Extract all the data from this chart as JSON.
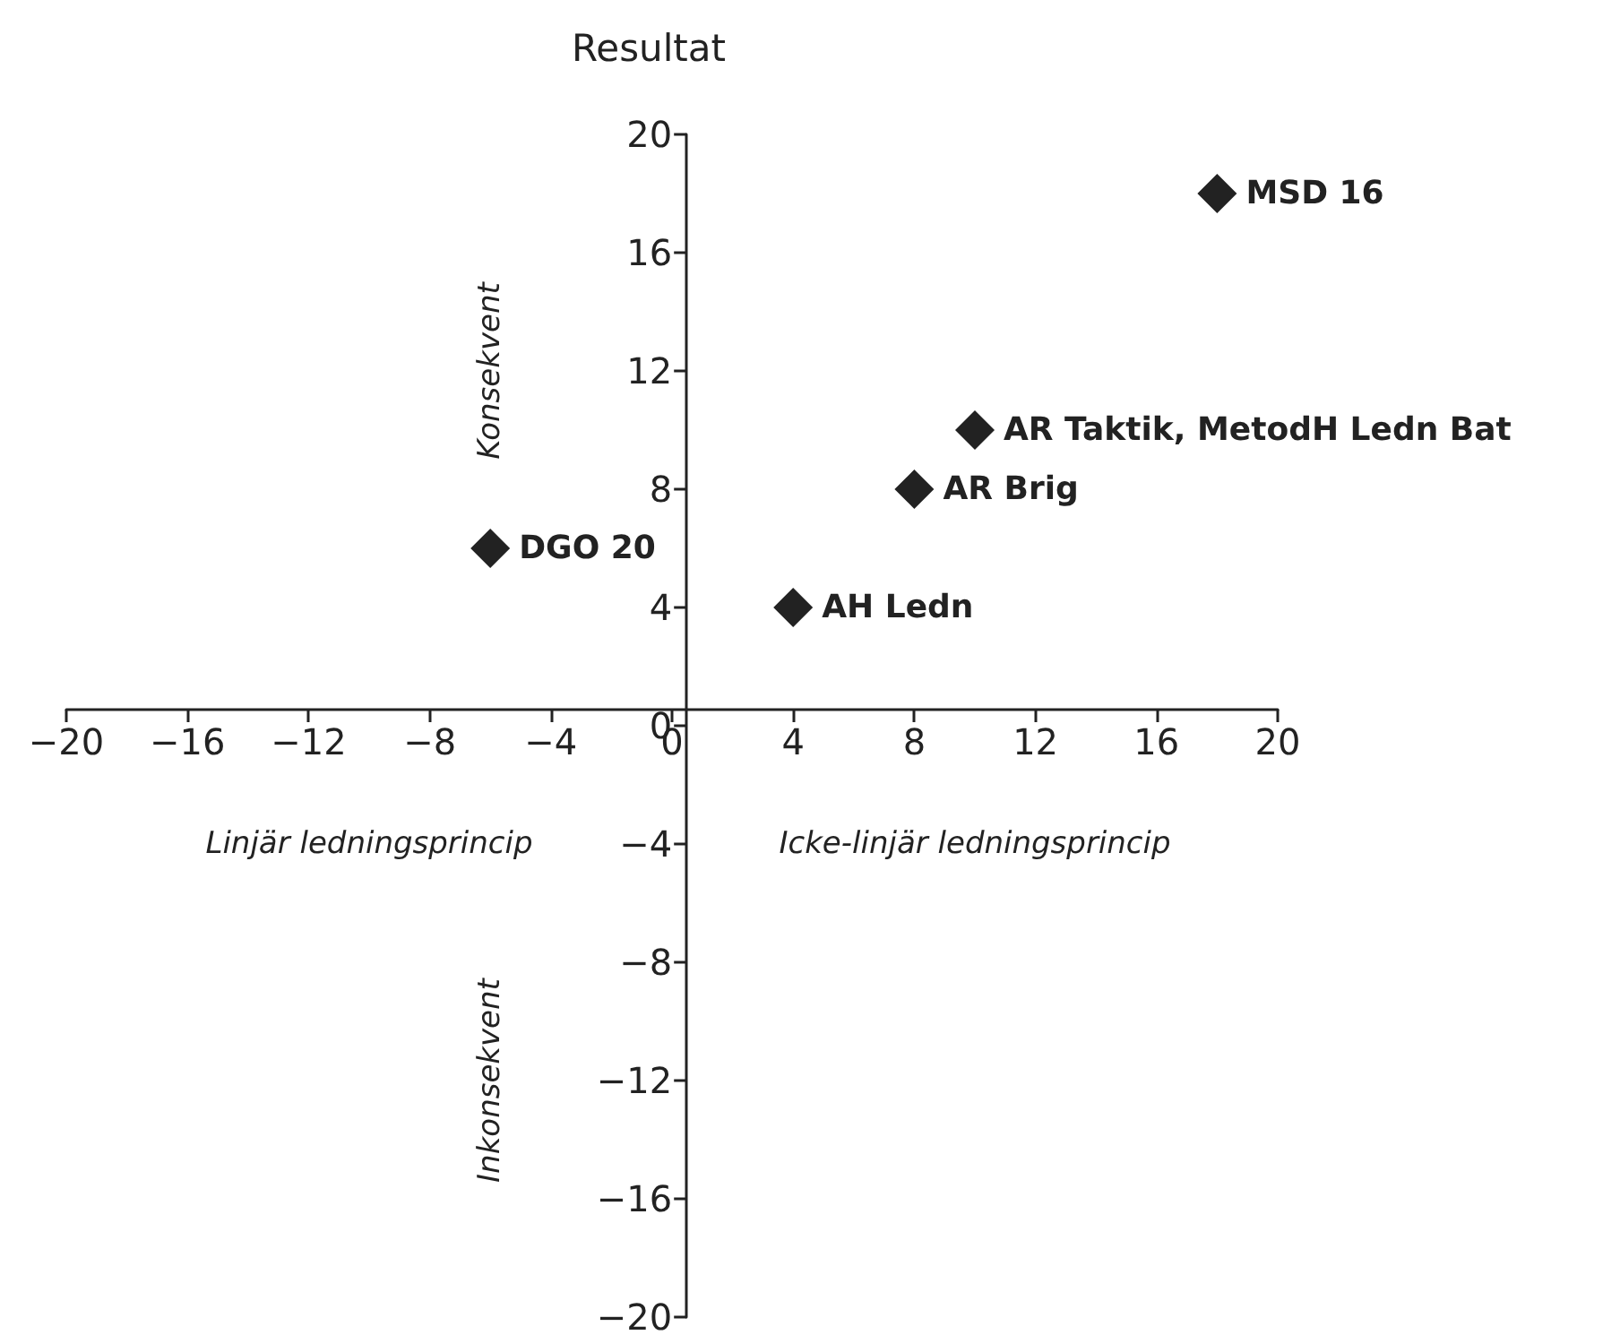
{
  "chart_data": {
    "type": "scatter",
    "title": "Resultat",
    "series": [
      {
        "color": "#222222",
        "x": [
          18,
          10,
          8,
          -6,
          4
        ],
        "values": [
          18,
          10,
          8,
          6,
          4
        ]
      }
    ],
    "xlim": [
      -20,
      20
    ],
    "xticks": [
      -20,
      -16,
      -12,
      -8,
      -4,
      0,
      4,
      8,
      12,
      16,
      20
    ],
    "ylim": [
      -20,
      20
    ],
    "yticks": [
      -20,
      -16,
      -12,
      -8,
      -4,
      0,
      4,
      8,
      12,
      16,
      20
    ],
    "marker": "diamond",
    "grid": false,
    "annotations": [
      {
        "text": "MSD 16",
        "x": 18,
        "y": 18
      },
      {
        "text": "AR Taktik, MetodH Ledn Bat",
        "x": 10,
        "y": 10
      },
      {
        "text": "AR Brig",
        "x": 8,
        "y": 8
      },
      {
        "text": "DGO 20",
        "x": -6,
        "y": 6
      },
      {
        "text": "AH Ledn",
        "x": 4,
        "y": 4
      },
      "Konsekvent",
      "Inkonsekvent",
      "Linjär ledningsprincip",
      "Icke-linjär ledningsprincip"
    ]
  }
}
